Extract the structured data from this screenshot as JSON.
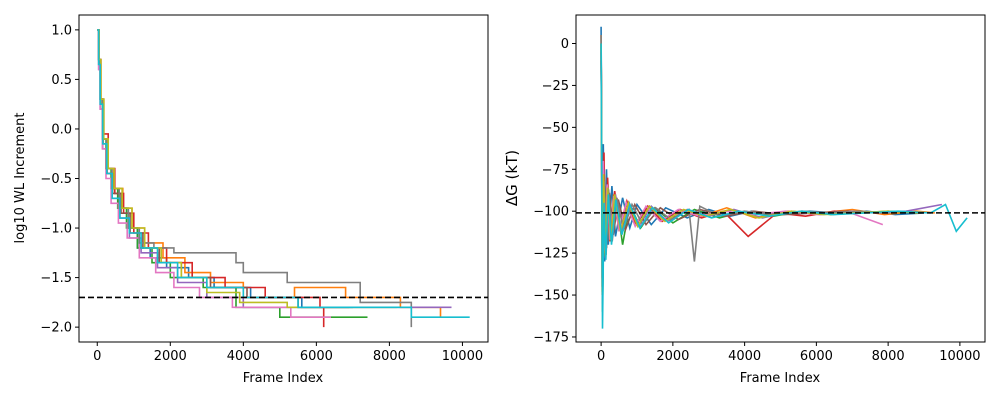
{
  "chart_data": [
    {
      "type": "line",
      "xlabel": "Frame Index",
      "ylabel": "log10 WL Increment",
      "xlim": [
        -500,
        10700
      ],
      "ylim": [
        -2.15,
        1.15
      ],
      "xticks": [
        0,
        2000,
        4000,
        6000,
        8000,
        10000
      ],
      "yticks": [
        -2.0,
        -1.5,
        -1.0,
        -0.5,
        0.0,
        0.5,
        1.0
      ],
      "ytick_labels": [
        "−2.0",
        "−1.5",
        "−1.0",
        "−0.5",
        "0.0",
        "0.5",
        "1.0"
      ],
      "reference_line": {
        "y": -1.7,
        "style": "dashed",
        "color": "#000000"
      },
      "series": [
        {
          "color": "#1f77b4",
          "x": [
            0,
            40,
            80,
            150,
            250,
            400,
            600,
            850,
            1100,
            1450,
            1900,
            2500,
            3200,
            4200,
            5600,
            7000
          ],
          "y": [
            1.0,
            0.7,
            0.3,
            -0.1,
            -0.4,
            -0.6,
            -0.8,
            -1.0,
            -1.2,
            -1.3,
            -1.4,
            -1.5,
            -1.6,
            -1.7,
            -1.8,
            -1.8
          ]
        },
        {
          "color": "#ff7f0e",
          "x": [
            0,
            40,
            90,
            160,
            280,
            450,
            700,
            950,
            1300,
            1800,
            2400,
            3100,
            4000,
            5400,
            6800,
            8300,
            9400
          ],
          "y": [
            1.0,
            0.7,
            0.3,
            -0.1,
            -0.4,
            -0.6,
            -0.8,
            -1.0,
            -1.15,
            -1.3,
            -1.45,
            -1.55,
            -1.7,
            -1.6,
            -1.7,
            -1.8,
            -1.9
          ]
        },
        {
          "color": "#2ca02c",
          "x": [
            0,
            40,
            80,
            140,
            240,
            380,
            560,
            800,
            1100,
            1500,
            2000,
            2900,
            3800,
            5000,
            6500,
            7400
          ],
          "y": [
            1.0,
            0.7,
            0.3,
            -0.1,
            -0.4,
            -0.6,
            -0.8,
            -1.0,
            -1.2,
            -1.35,
            -1.5,
            -1.6,
            -1.8,
            -1.9,
            -1.9,
            -1.9
          ]
        },
        {
          "color": "#d62728",
          "x": [
            0,
            50,
            100,
            180,
            300,
            480,
            720,
            1000,
            1400,
            1900,
            2600,
            3500,
            4600,
            6100,
            6200
          ],
          "y": [
            1.0,
            0.7,
            0.3,
            -0.05,
            -0.4,
            -0.65,
            -0.85,
            -1.05,
            -1.2,
            -1.35,
            -1.5,
            -1.6,
            -1.7,
            -1.8,
            -2.0
          ]
        },
        {
          "color": "#9467bd",
          "x": [
            0,
            40,
            80,
            150,
            260,
            400,
            620,
            880,
            1200,
            1650,
            2200,
            3000,
            4000,
            5300,
            6800,
            8000,
            9700
          ],
          "y": [
            1.0,
            0.6,
            0.2,
            -0.2,
            -0.45,
            -0.7,
            -0.9,
            -1.1,
            -1.25,
            -1.4,
            -1.55,
            -1.7,
            -1.8,
            -1.8,
            -1.8,
            -1.8,
            -1.8
          ]
        },
        {
          "color": "#8c564b",
          "x": [
            0,
            40,
            90,
            160,
            270,
            420,
            650,
            900,
            1250,
            1700,
            2300,
            3100,
            4100,
            5500,
            6900
          ],
          "y": [
            1.0,
            0.65,
            0.25,
            -0.15,
            -0.45,
            -0.65,
            -0.85,
            -1.05,
            -1.2,
            -1.35,
            -1.5,
            -1.6,
            -1.7,
            -1.8,
            -1.8
          ]
        },
        {
          "color": "#e377c2",
          "x": [
            0,
            40,
            80,
            140,
            240,
            380,
            580,
            820,
            1150,
            1600,
            2100,
            2800,
            3700,
            5300,
            6400
          ],
          "y": [
            1.0,
            0.6,
            0.2,
            -0.2,
            -0.5,
            -0.75,
            -0.95,
            -1.1,
            -1.3,
            -1.45,
            -1.6,
            -1.7,
            -1.8,
            -1.9,
            -1.9
          ]
        },
        {
          "color": "#7f7f7f",
          "x": [
            0,
            40,
            80,
            150,
            250,
            400,
            600,
            850,
            1150,
            1550,
            2100,
            2900,
            3800,
            4000,
            5200,
            7200,
            8600
          ],
          "y": [
            1.0,
            0.7,
            0.3,
            -0.1,
            -0.4,
            -0.6,
            -0.8,
            -1.0,
            -1.15,
            -1.2,
            -1.25,
            -1.25,
            -1.35,
            -1.45,
            -1.55,
            -1.75,
            -2.0
          ]
        },
        {
          "color": "#bcbd22",
          "x": [
            0,
            50,
            100,
            180,
            300,
            460,
            680,
            950,
            1300,
            1750,
            2300,
            3000,
            3900,
            5200,
            6600,
            8200
          ],
          "y": [
            1.0,
            0.7,
            0.3,
            -0.1,
            -0.4,
            -0.6,
            -0.8,
            -1.0,
            -1.2,
            -1.35,
            -1.5,
            -1.65,
            -1.75,
            -1.8,
            -1.8,
            -1.8
          ]
        },
        {
          "color": "#17becf",
          "x": [
            0,
            40,
            80,
            150,
            260,
            410,
            620,
            880,
            1200,
            1650,
            2200,
            3000,
            4000,
            5500,
            7000,
            8600,
            10200
          ],
          "y": [
            1.0,
            0.65,
            0.25,
            -0.15,
            -0.45,
            -0.7,
            -0.9,
            -1.05,
            -1.2,
            -1.35,
            -1.5,
            -1.6,
            -1.7,
            -1.8,
            -1.8,
            -1.9,
            -1.9
          ]
        }
      ]
    },
    {
      "type": "line",
      "xlabel": "Frame Index",
      "ylabel": "ΔG (kT)",
      "xlim": [
        -700,
        10700
      ],
      "ylim": [
        -178,
        17
      ],
      "xticks": [
        0,
        2000,
        4000,
        6000,
        8000,
        10000
      ],
      "yticks": [
        -175,
        -150,
        -125,
        -100,
        -75,
        -50,
        -25,
        0
      ],
      "ytick_labels": [
        "−175",
        "−150",
        "−125",
        "−100",
        "−75",
        "−50",
        "−25",
        "0"
      ],
      "reference_line": {
        "y": -101,
        "style": "dashed",
        "color": "#000000"
      },
      "series": [
        {
          "color": "#1f77b4",
          "x": [
            0,
            30,
            60,
            100,
            150,
            200,
            300,
            400,
            600,
            800,
            1000,
            1400,
            1800,
            2400,
            3000,
            3600,
            4200,
            5000,
            5800,
            6600,
            7400,
            8200,
            9000
          ],
          "y": [
            10,
            -140,
            -60,
            -130,
            -75,
            -120,
            -85,
            -115,
            -92,
            -110,
            -96,
            -108,
            -98,
            -104,
            -99,
            -103,
            -100,
            -102,
            -100,
            -101,
            -100,
            -102,
            -101
          ]
        },
        {
          "color": "#ff7f0e",
          "x": [
            0,
            30,
            60,
            100,
            160,
            240,
            350,
            500,
            700,
            950,
            1300,
            1700,
            2200,
            2800,
            3500,
            4300,
            5200,
            6100,
            7000,
            7900,
            8800,
            9300
          ],
          "y": [
            5,
            -150,
            -80,
            -125,
            -85,
            -118,
            -90,
            -112,
            -95,
            -108,
            -97,
            -106,
            -99,
            -103,
            -98,
            -104,
            -100,
            -101,
            -99,
            -102,
            -100,
            -101
          ]
        },
        {
          "color": "#2ca02c",
          "x": [
            0,
            40,
            80,
            130,
            200,
            300,
            420,
            600,
            800,
            1100,
            1500,
            2000,
            2600,
            3300,
            4000,
            4800,
            5600,
            6400,
            7200,
            8000,
            8800
          ],
          "y": [
            0,
            -160,
            -90,
            -120,
            -88,
            -115,
            -92,
            -120,
            -96,
            -110,
            -98,
            -107,
            -99,
            -104,
            -100,
            -103,
            -100,
            -102,
            -101,
            -100,
            -101
          ]
        },
        {
          "color": "#d62728",
          "x": [
            0,
            40,
            80,
            120,
            180,
            260,
            380,
            520,
            720,
            980,
            1300,
            1700,
            2200,
            2800,
            3400,
            4100,
            4900,
            5700,
            6500,
            7300
          ],
          "y": [
            -5,
            -130,
            -65,
            -125,
            -80,
            -118,
            -88,
            -112,
            -94,
            -108,
            -97,
            -106,
            -99,
            -104,
            -100,
            -115,
            -101,
            -103,
            -100,
            -101
          ]
        },
        {
          "color": "#9467bd",
          "x": [
            0,
            30,
            70,
            120,
            190,
            280,
            400,
            560,
            780,
            1050,
            1400,
            1850,
            2400,
            3000,
            3700,
            4500,
            5300,
            6100,
            6900,
            7700,
            8500,
            9500
          ],
          "y": [
            0,
            -145,
            -75,
            -128,
            -86,
            -116,
            -90,
            -113,
            -95,
            -109,
            -97,
            -106,
            -99,
            -103,
            -99,
            -104,
            -100,
            -102,
            -100,
            -101,
            -100,
            -96
          ]
        },
        {
          "color": "#8c564b",
          "x": [
            0,
            40,
            90,
            150,
            230,
            340,
            480,
            680,
            940,
            1250,
            1650,
            2150,
            2750,
            3450,
            4250,
            5100,
            6000,
            6900
          ],
          "y": [
            -10,
            -155,
            -85,
            -122,
            -89,
            -114,
            -93,
            -111,
            -96,
            -108,
            -98,
            -105,
            -99,
            -103,
            -100,
            -102,
            -101,
            -100
          ]
        },
        {
          "color": "#e377c2",
          "x": [
            0,
            30,
            60,
            110,
            170,
            250,
            360,
            500,
            700,
            950,
            1250,
            1650,
            2150,
            2750,
            3450,
            4250,
            5150,
            6050,
            6950,
            7850
          ],
          "y": [
            0,
            -140,
            -70,
            -124,
            -84,
            -117,
            -91,
            -112,
            -95,
            -109,
            -97,
            -106,
            -99,
            -103,
            -100,
            -102,
            -100,
            -102,
            -101,
            -108
          ]
        },
        {
          "color": "#7f7f7f",
          "x": [
            0,
            40,
            80,
            140,
            210,
            310,
            440,
            620,
            860,
            1160,
            1520,
            1950,
            2450,
            2600,
            2750,
            3300,
            4000,
            4800,
            5600,
            6400,
            7200,
            8000
          ],
          "y": [
            5,
            -150,
            -82,
            -126,
            -87,
            -118,
            -92,
            -111,
            -96,
            -108,
            -98,
            -105,
            -99,
            -130,
            -97,
            -103,
            -100,
            -102,
            -100,
            -101,
            -100,
            -101
          ]
        },
        {
          "color": "#bcbd22",
          "x": [
            0,
            30,
            70,
            120,
            180,
            270,
            380,
            540,
            760,
            1020,
            1350,
            1780,
            2300,
            2900,
            3600,
            4400,
            5300,
            6200,
            7100,
            8000,
            8900
          ],
          "y": [
            0,
            -148,
            -78,
            -127,
            -86,
            -117,
            -90,
            -112,
            -95,
            -109,
            -97,
            -106,
            -99,
            -103,
            -99,
            -104,
            -100,
            -102,
            -101,
            -100,
            -101
          ]
        },
        {
          "color": "#17becf",
          "x": [
            0,
            40,
            80,
            130,
            200,
            290,
            410,
            580,
            800,
            1080,
            1430,
            1880,
            2430,
            3080,
            3830,
            4680,
            5580,
            6480,
            7380,
            8280,
            9180,
            9600,
            9900,
            10200
          ],
          "y": [
            0,
            -170,
            -95,
            -129,
            -90,
            -120,
            -93,
            -114,
            -96,
            -110,
            -98,
            -107,
            -99,
            -104,
            -100,
            -103,
            -100,
            -102,
            -101,
            -100,
            -101,
            -96,
            -112,
            -104
          ]
        }
      ]
    }
  ]
}
